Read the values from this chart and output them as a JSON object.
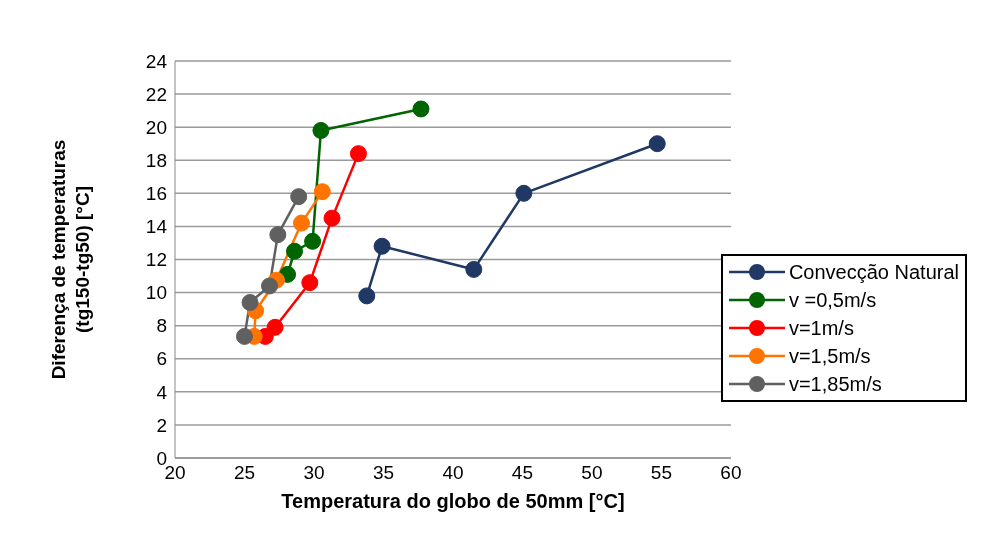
{
  "chart_data": {
    "type": "line",
    "xlabel": "Temperatura do globo de 50mm [°C]",
    "ylabel": "Diferença de temperaturas (tg150-tg50) [°C]",
    "xlim": [
      20,
      60
    ],
    "xticks": [
      20,
      25,
      30,
      35,
      40,
      45,
      50,
      55,
      60
    ],
    "ylim": [
      0,
      24
    ],
    "yticks": [
      0,
      2,
      4,
      6,
      8,
      10,
      12,
      14,
      16,
      18,
      20,
      22,
      24
    ],
    "grid": "y",
    "legend": "right",
    "marker": "circle",
    "line_style": "solid",
    "series": [
      {
        "name": "Convecção Natural",
        "color": "#1f3864",
        "x": [
          33.8,
          34.9,
          41.5,
          45.1,
          54.7
        ],
        "values": [
          9.8,
          12.8,
          11.4,
          16.0,
          19.0
        ]
      },
      {
        "name": "v =0,5m/s",
        "color": "#006400",
        "x": [
          28.1,
          28.6,
          29.9,
          30.5,
          37.7
        ],
        "values": [
          11.1,
          12.5,
          13.1,
          19.8,
          21.1
        ]
      },
      {
        "name": "v=1m/s",
        "color": "#ff0000",
        "x": [
          26.5,
          27.2,
          29.7,
          31.3,
          33.2
        ],
        "values": [
          7.35,
          7.9,
          10.6,
          14.5,
          18.4
        ]
      },
      {
        "name": "v=1,5m/s",
        "color": "#ff7400",
        "x": [
          25.7,
          25.8,
          27.3,
          29.1,
          30.6
        ],
        "values": [
          7.35,
          8.9,
          10.75,
          14.2,
          16.1
        ]
      },
      {
        "name": "v=1,85m/s",
        "color": "#606060",
        "x": [
          25.0,
          25.4,
          26.8,
          27.4,
          28.9
        ],
        "values": [
          7.35,
          9.4,
          10.4,
          13.5,
          15.8
        ]
      }
    ]
  }
}
